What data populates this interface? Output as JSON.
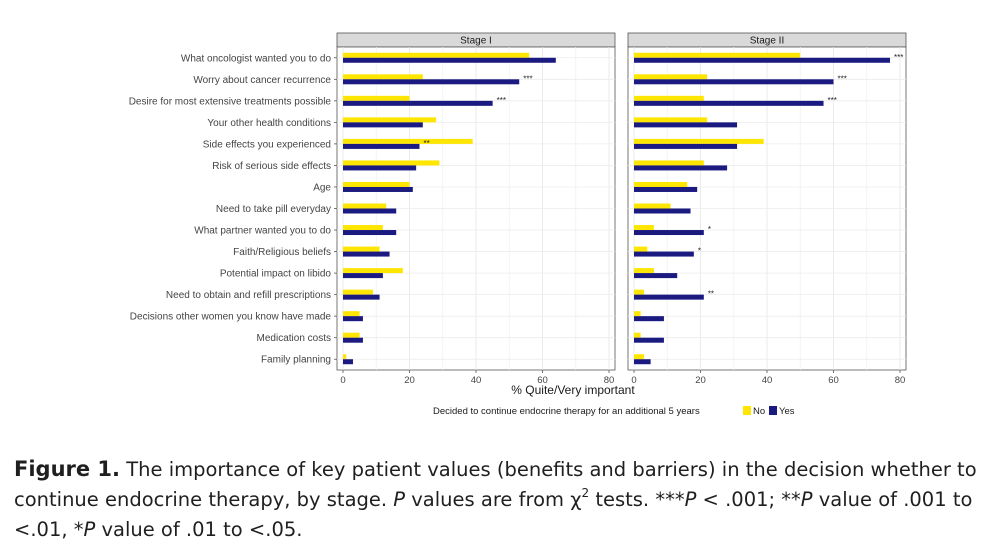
{
  "chart_data": {
    "type": "bar",
    "orientation": "horizontal",
    "categories": [
      "What oncologist wanted you to do",
      "Worry about cancer recurrence",
      "Desire for most extensive treatments possible",
      "Your other health conditions",
      "Side effects you experienced",
      "Risk of serious side effects",
      "Age",
      "Need to take pill everyday",
      "What partner wanted you to do",
      "Faith/Religious beliefs",
      "Potential impact on libido",
      "Need to obtain and refill prescriptions",
      "Decisions other women you know have made",
      "Medication costs",
      "Family planning"
    ],
    "panels": [
      {
        "title": "Stage I",
        "series": [
          {
            "name": "No",
            "color": "#FFE600",
            "values": [
              56,
              24,
              20,
              28,
              39,
              29,
              20,
              13,
              12,
              11,
              18,
              9,
              5,
              5,
              1
            ]
          },
          {
            "name": "Yes",
            "color": "#1A1A80",
            "values": [
              64,
              53,
              45,
              24,
              23,
              22,
              21,
              16,
              16,
              14,
              12,
              11,
              6,
              6,
              3
            ]
          }
        ],
        "significance": [
          "",
          "***",
          "***",
          "",
          "**",
          "",
          "",
          "",
          "",
          "",
          "",
          "",
          "",
          "",
          ""
        ]
      },
      {
        "title": "Stage II",
        "series": [
          {
            "name": "No",
            "color": "#FFE600",
            "values": [
              50,
              22,
              21,
              22,
              39,
              21,
              16,
              11,
              6,
              4,
              6,
              3,
              2,
              2,
              3
            ]
          },
          {
            "name": "Yes",
            "color": "#1A1A80",
            "values": [
              77,
              60,
              57,
              31,
              31,
              28,
              19,
              17,
              21,
              18,
              13,
              21,
              9,
              9,
              5
            ]
          }
        ],
        "significance": [
          "***",
          "***",
          "***",
          "",
          "",
          "",
          "",
          "",
          "*",
          "*",
          "",
          "**",
          "",
          "",
          ""
        ]
      }
    ],
    "xlim": [
      0,
      80
    ],
    "xticks": [
      "0",
      "20",
      "40",
      "60",
      "80"
    ],
    "xlabel": "% Quite/Very important",
    "legend": {
      "title": "Decided to continue endocrine therapy for an additional 5 years",
      "labels": [
        "No",
        "Yes"
      ],
      "position": "bottom"
    }
  },
  "caption": {
    "figure_label": "Figure 1.",
    "text_1": "The importance of key patient values (benefits and barriers) in the decision whether to continue endocrine therapy, by stage.",
    "p_letter": "P",
    "text_2": "values are from",
    "chi": "χ",
    "chi_exp": "2",
    "text_3": "tests. ***",
    "text_4": "< .001; **",
    "text_5": "value of .001 to <.01, *",
    "text_6": "value of .01 to <.05."
  }
}
